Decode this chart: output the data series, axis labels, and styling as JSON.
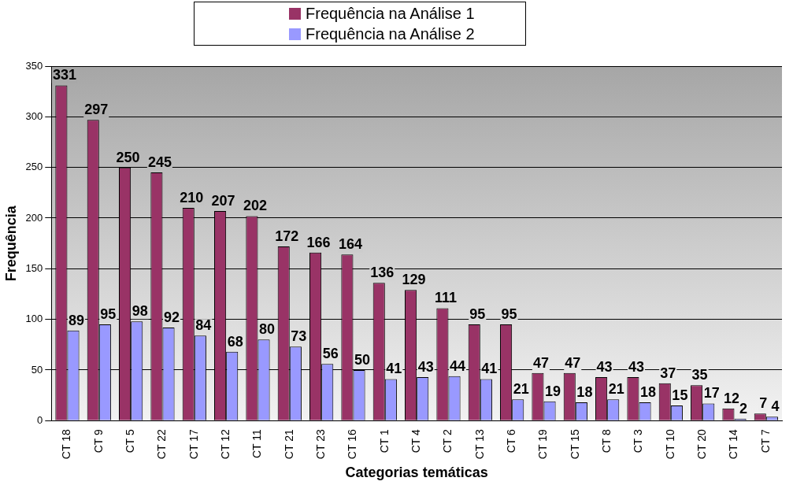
{
  "chart_data": {
    "type": "bar",
    "xlabel": "Categorias temáticas",
    "ylabel": "Frequência",
    "categories": [
      "CT 18",
      "CT 9",
      "CT 5",
      "CT 22",
      "CT 17",
      "CT 12",
      "CT 11",
      "CT 21",
      "CT 23",
      "CT 16",
      "CT 1",
      "CT 4",
      "CT 2",
      "CT 13",
      "CT 6",
      "CT 19",
      "CT 15",
      "CT 8",
      "CT 3",
      "CT 10",
      "CT 20",
      "CT 14",
      "CT 7"
    ],
    "series": [
      {
        "name": "Frequência na Análise 1",
        "color": "#993366",
        "values": [
          331,
          297,
          250,
          245,
          210,
          207,
          202,
          172,
          166,
          164,
          136,
          129,
          111,
          95,
          95,
          47,
          47,
          43,
          43,
          37,
          35,
          12,
          7
        ]
      },
      {
        "name": "Frequência na Análise 2",
        "color": "#9999ff",
        "values": [
          89,
          95,
          98,
          92,
          84,
          68,
          80,
          73,
          56,
          50,
          41,
          43,
          44,
          41,
          21,
          19,
          18,
          21,
          18,
          15,
          17,
          2,
          4
        ]
      }
    ],
    "ylim": [
      0,
      350
    ],
    "yticks": [
      0,
      50,
      100,
      150,
      200,
      250,
      300,
      350
    ],
    "grid": "y",
    "legend": "top",
    "data_labels": true
  }
}
